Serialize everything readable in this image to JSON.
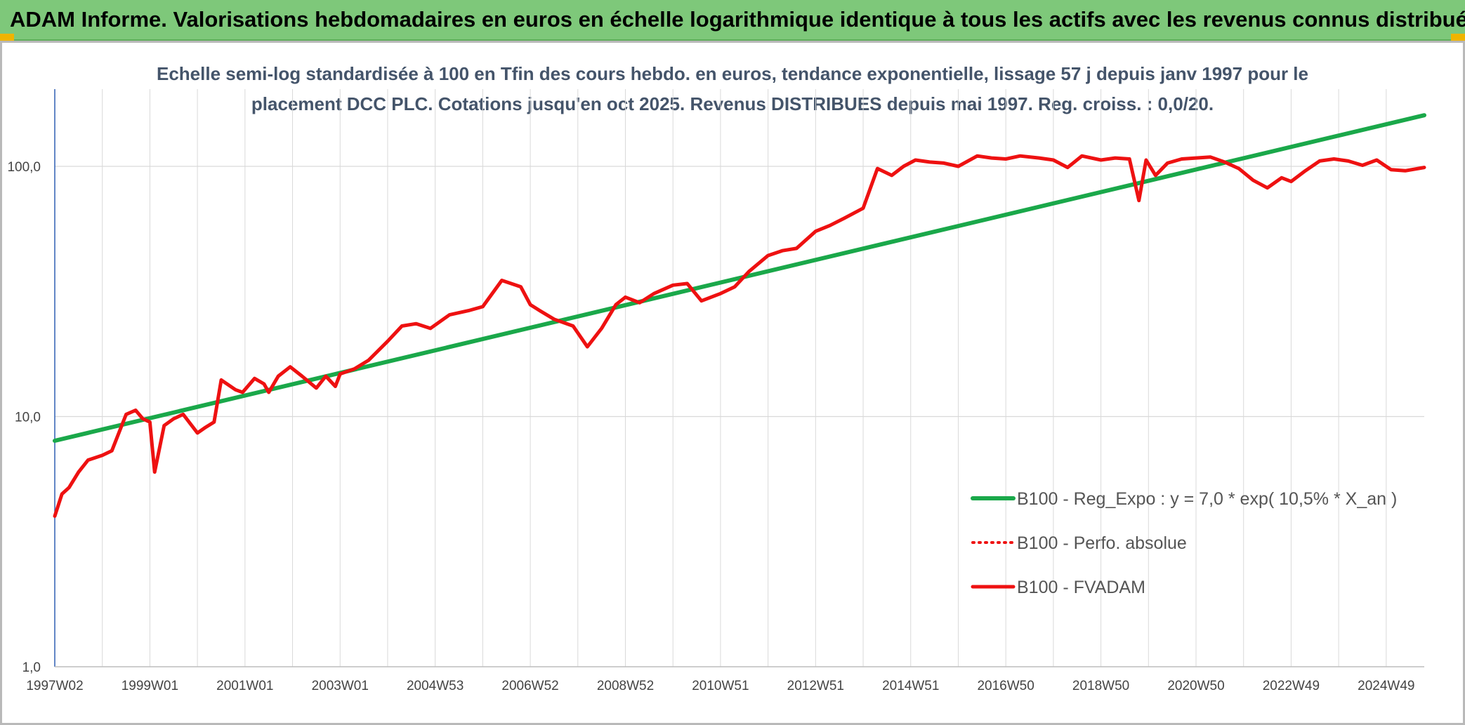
{
  "banner": {
    "title": "ADAM Informe. Valorisations hebdomadaires en euros en échelle logarithmique identique à tous les actifs avec les revenus connus distribués"
  },
  "colors": {
    "banner": "#7ec87a",
    "trend": "#1aa84a",
    "series": "#ee1111",
    "axis": "#2e5fb3",
    "grid": "#d9d9d9",
    "corner": "#f0b400"
  },
  "chart_data": {
    "type": "line",
    "title_line1": "Echelle semi-log standardisée à 100 en Tfin des cours hebdo. en euros, tendance exponentielle, lissage 57 j depuis janv 1997 pour le",
    "title_line2": "placement DCC PLC. Cotations jusqu'en oct 2025. Revenus DISTRIBUES depuis mai 1997. Reg. croiss. : 0,0/20.",
    "y_scale": "log",
    "ylim": [
      1,
      100
    ],
    "y_ticks": [
      {
        "value": 1,
        "label": "1,0"
      },
      {
        "value": 10,
        "label": "10,0"
      },
      {
        "value": 100,
        "label": "100,0"
      }
    ],
    "xlim": [
      1997.0,
      2025.8
    ],
    "x_ticks": [
      {
        "value": 1997.0,
        "label": "1997W02"
      },
      {
        "value": 1999.0,
        "label": "1999W01"
      },
      {
        "value": 2001.0,
        "label": "2001W01"
      },
      {
        "value": 2003.0,
        "label": "2003W01"
      },
      {
        "value": 2005.0,
        "label": "2004W53"
      },
      {
        "value": 2007.0,
        "label": "2006W52"
      },
      {
        "value": 2009.0,
        "label": "2008W52"
      },
      {
        "value": 2011.0,
        "label": "2010W51"
      },
      {
        "value": 2013.0,
        "label": "2012W51"
      },
      {
        "value": 2015.0,
        "label": "2014W51"
      },
      {
        "value": 2017.0,
        "label": "2016W50"
      },
      {
        "value": 2019.0,
        "label": "2018W50"
      },
      {
        "value": 2021.0,
        "label": "2020W50"
      },
      {
        "value": 2023.0,
        "label": "2022W49"
      },
      {
        "value": 2025.0,
        "label": "2024W49"
      }
    ],
    "legend_position": "bottom-right",
    "grid": true,
    "series": [
      {
        "name": "B100 - Reg_Expo : y = 7,0 * exp( 10,5% *  X_an )",
        "style": "solid-thick",
        "color": "#1aa84a",
        "x": [
          1997.0,
          2025.8
        ],
        "y": [
          8.0,
          160.0
        ]
      },
      {
        "name": "B100 - Perfo. absolue",
        "style": "dotted",
        "color": "#ee1111",
        "x": [],
        "y": []
      },
      {
        "name": "B100 - FVADAM",
        "style": "solid",
        "color": "#ee1111",
        "x": [
          1997.0,
          1997.15,
          1997.3,
          1997.5,
          1997.7,
          1998.0,
          1998.2,
          1998.5,
          1998.7,
          1998.85,
          1999.0,
          1999.1,
          1999.3,
          1999.5,
          1999.7,
          2000.0,
          2000.15,
          2000.35,
          2000.5,
          2000.8,
          2000.95,
          2001.2,
          2001.4,
          2001.5,
          2001.7,
          2001.95,
          2002.2,
          2002.5,
          2002.7,
          2002.9,
          2003.0,
          2003.3,
          2003.6,
          2004.0,
          2004.3,
          2004.6,
          2004.9,
          2005.3,
          2005.7,
          2006.0,
          2006.4,
          2006.8,
          2007.0,
          2007.2,
          2007.5,
          2007.9,
          2008.2,
          2008.5,
          2008.8,
          2009.0,
          2009.3,
          2009.6,
          2010.0,
          2010.3,
          2010.6,
          2011.0,
          2011.3,
          2011.6,
          2012.0,
          2012.3,
          2012.6,
          2013.0,
          2013.3,
          2013.6,
          2014.0,
          2014.3,
          2014.6,
          2014.85,
          2015.1,
          2015.4,
          2015.7,
          2016.0,
          2016.4,
          2016.7,
          2017.0,
          2017.3,
          2017.7,
          2018.0,
          2018.3,
          2018.6,
          2019.0,
          2019.3,
          2019.6,
          2019.8,
          2019.95,
          2020.15,
          2020.4,
          2020.7,
          2021.0,
          2021.3,
          2021.6,
          2021.9,
          2022.2,
          2022.5,
          2022.8,
          2023.0,
          2023.3,
          2023.6,
          2023.9,
          2024.2,
          2024.5,
          2024.8,
          2025.1,
          2025.4,
          2025.8
        ],
        "y": [
          4.0,
          4.9,
          5.2,
          6.0,
          6.7,
          7.0,
          7.3,
          10.2,
          10.6,
          9.8,
          9.5,
          6.0,
          9.2,
          9.8,
          10.2,
          8.6,
          9.0,
          9.5,
          14.0,
          12.8,
          12.5,
          14.2,
          13.5,
          12.5,
          14.5,
          15.8,
          14.5,
          13.0,
          14.5,
          13.2,
          14.8,
          15.5,
          16.8,
          20.0,
          23.0,
          23.5,
          22.5,
          25.5,
          26.5,
          27.5,
          35.0,
          33.0,
          28.0,
          26.5,
          24.5,
          23.0,
          19.0,
          22.5,
          28.0,
          30.0,
          28.5,
          31.0,
          33.5,
          34.0,
          29.0,
          31.0,
          33.0,
          38.0,
          44.0,
          46.0,
          47.0,
          55.0,
          58.0,
          62.0,
          68.0,
          98.0,
          92.0,
          100.0,
          106.0,
          104.0,
          103.0,
          100.0,
          110.0,
          108.0,
          107.0,
          110.0,
          108.0,
          106.0,
          99.0,
          110.0,
          106.0,
          108.0,
          107.0,
          73.0,
          106.0,
          92.0,
          103.0,
          107.0,
          108.0,
          109.0,
          104.0,
          98.0,
          88.0,
          82.0,
          90.0,
          87.0,
          96.0,
          105.0,
          107.0,
          105.0,
          101.0,
          106.0,
          97.0,
          96.0,
          99.0
        ]
      }
    ]
  }
}
